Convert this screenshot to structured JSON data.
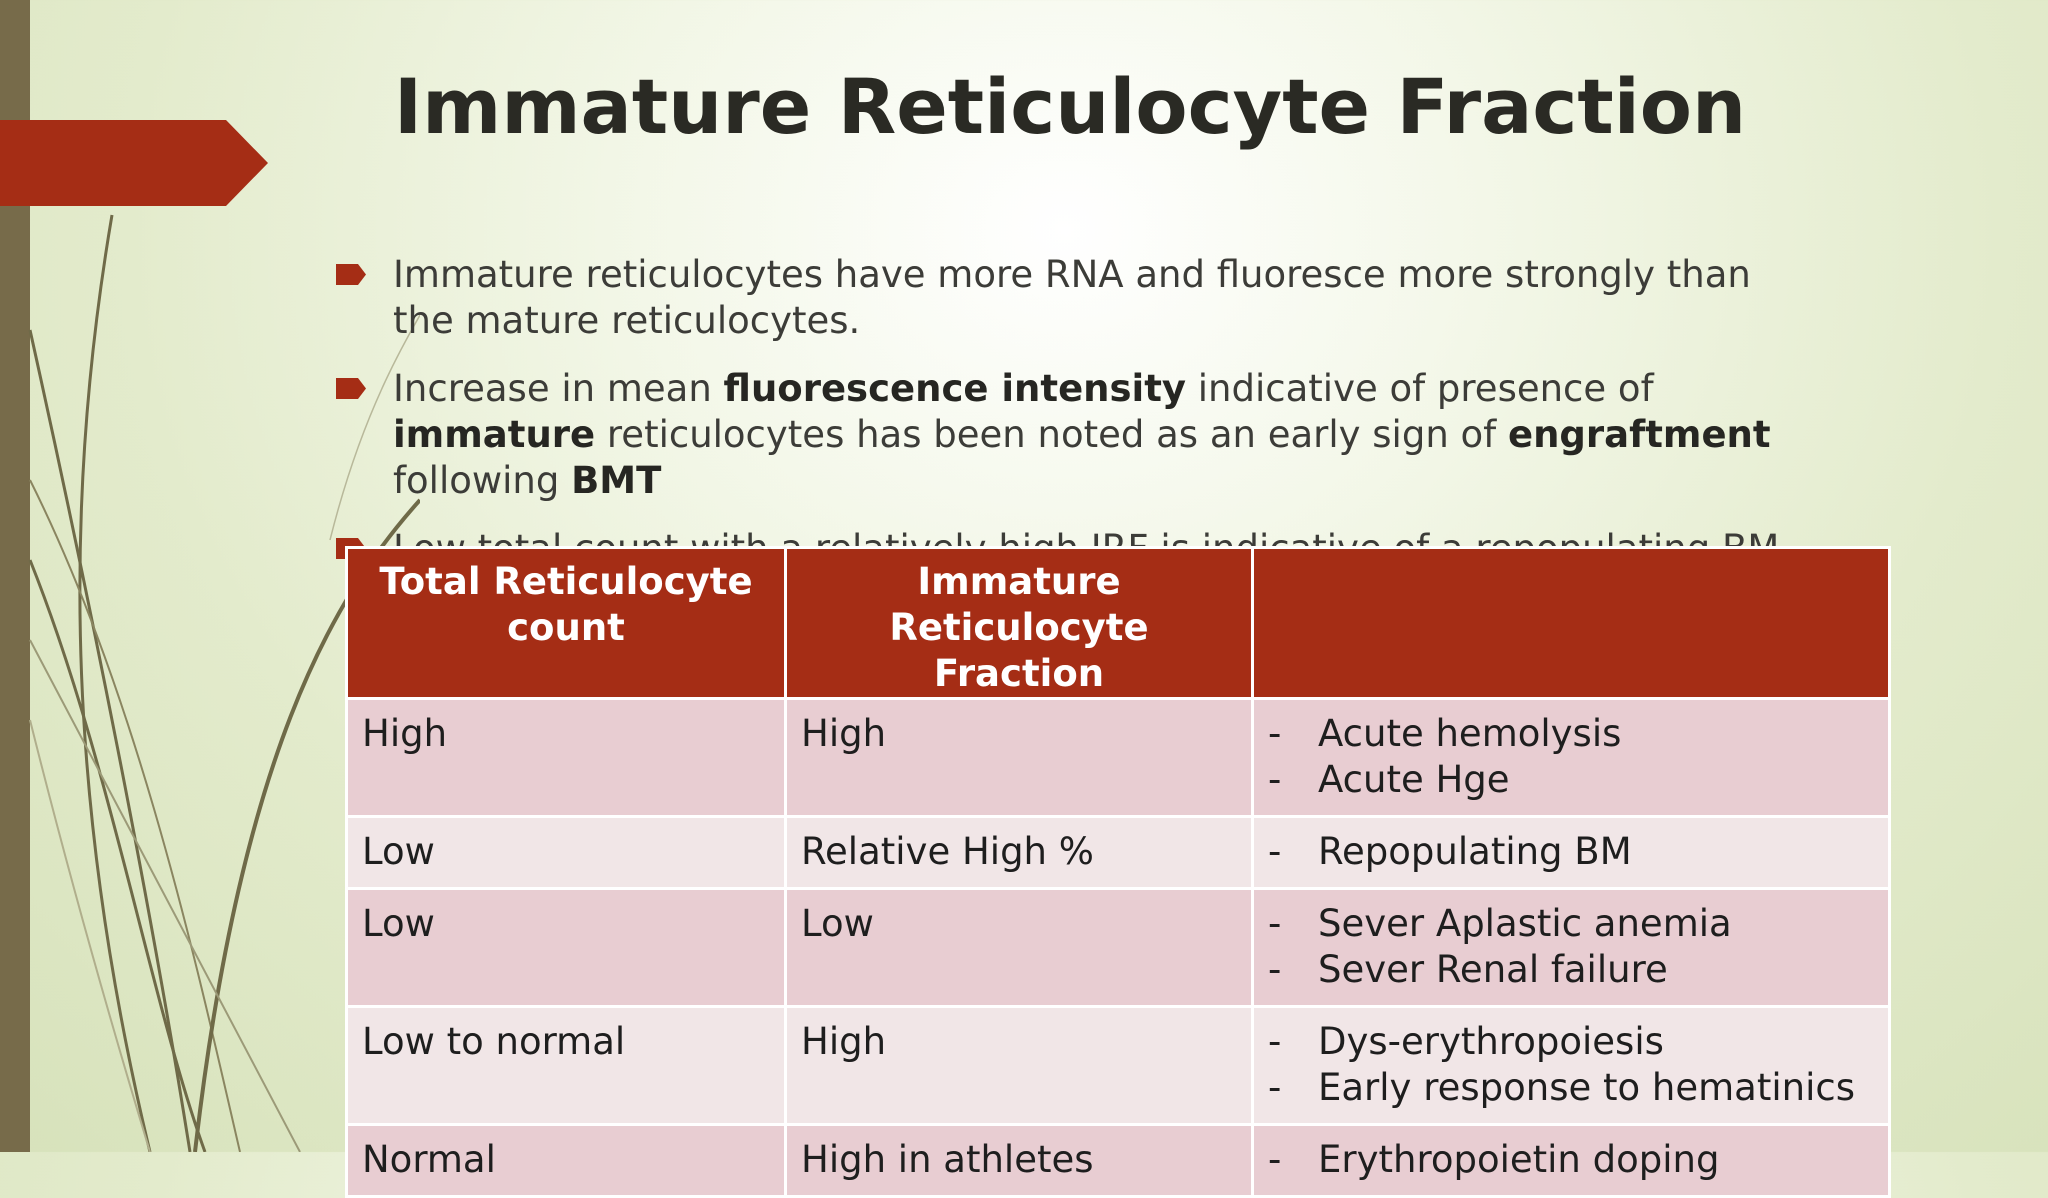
{
  "slide": {
    "title": "Immature Reticulocyte Fraction",
    "accent_color": "#a52d15",
    "bullets": [
      {
        "parts": [
          {
            "t": "Immature reticulocytes have more RNA and fluoresce more strongly than the mature reticulocytes.",
            "b": false
          }
        ]
      },
      {
        "parts": [
          {
            "t": "Increase in mean ",
            "b": false
          },
          {
            "t": "fluorescence intensity",
            "b": true
          },
          {
            "t": " indicative of presence of ",
            "b": false
          },
          {
            "t": "immature",
            "b": true
          },
          {
            "t": " reticulocytes has been noted as an early sign of ",
            "b": false
          },
          {
            "t": "engraftment",
            "b": true
          },
          {
            "t": " following ",
            "b": false
          },
          {
            "t": "BMT",
            "b": true
          }
        ]
      },
      {
        "parts": [
          {
            "t": "Low total count with a relatively high IRF is indicative of a repopulating BM,",
            "b": false
          }
        ]
      }
    ]
  },
  "table": {
    "headers": [
      "Total Reticulocyte count",
      "Immature Reticulocyte Fraction",
      ""
    ],
    "rows": [
      {
        "c1": "High",
        "c2": "High",
        "items": [
          "Acute hemolysis",
          "Acute Hge"
        ]
      },
      {
        "c1": "Low",
        "c2": "Relative High %",
        "items": [
          "Repopulating BM"
        ]
      },
      {
        "c1": "Low",
        "c2": "Low",
        "items": [
          "Sever Aplastic anemia",
          "Sever Renal failure"
        ]
      },
      {
        "c1": "Low to normal",
        "c2": "High",
        "items": [
          "Dys-erythropoiesis",
          "Early response to hematinics"
        ]
      },
      {
        "c1": "Normal",
        "c2": "High in athletes",
        "items": [
          "Erythropoietin doping"
        ]
      }
    ],
    "dash": "-"
  }
}
